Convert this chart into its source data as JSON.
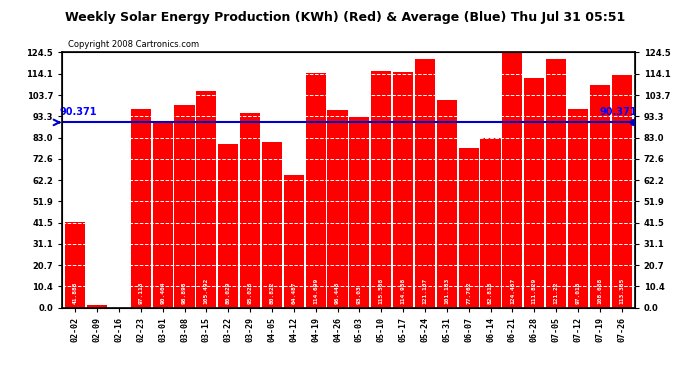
{
  "title": "Weekly Solar Energy Production (KWh) (Red) & Average (Blue) Thu Jul 31 05:51",
  "copyright": "Copyright 2008 Cartronics.com",
  "average": 90.371,
  "categories": [
    "02-02",
    "02-09",
    "02-16",
    "02-23",
    "03-01",
    "03-08",
    "03-15",
    "03-22",
    "03-29",
    "04-05",
    "04-12",
    "04-19",
    "04-26",
    "05-03",
    "05-10",
    "05-17",
    "05-24",
    "05-31",
    "06-07",
    "06-14",
    "06-21",
    "06-28",
    "07-05",
    "07-12",
    "07-19",
    "07-26"
  ],
  "values": [
    41.885,
    1.413,
    0.0,
    97.113,
    90.404,
    98.896,
    105.492,
    80.029,
    95.023,
    80.822,
    64.487,
    114.699,
    96.445,
    93.03,
    115.568,
    114.958,
    121.107,
    101.183,
    77.762,
    82.818,
    124.457,
    111.829,
    121.22,
    97.016,
    108.638,
    113.365
  ],
  "bar_color": "#ff0000",
  "avg_line_color": "#0000cc",
  "bg_color": "#ffffff",
  "plot_bg_color": "#ffffff",
  "title_color": "#000000",
  "ymin": 0.0,
  "ymax": 124.5,
  "yticks": [
    0.0,
    10.4,
    20.7,
    31.1,
    41.5,
    51.9,
    62.2,
    72.6,
    83.0,
    93.3,
    103.7,
    114.1,
    124.5
  ],
  "avg_label": "90.371",
  "avg_label_color": "#0000ff",
  "title_fontsize": 9,
  "copyright_fontsize": 6,
  "tick_label_fontsize": 6,
  "bar_label_fontsize": 4.5,
  "avg_label_fontsize": 7
}
